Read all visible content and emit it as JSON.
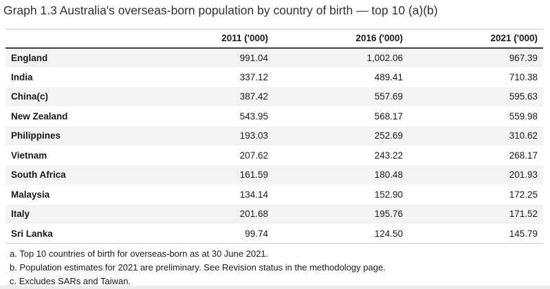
{
  "title": "Graph 1.3 Australia's overseas-born population by country of birth — top 10 (a)(b)",
  "table": {
    "headers": [
      "2011 ('000)",
      "2016 ('000)",
      "2021 ('000)"
    ],
    "rows": [
      {
        "name": "England",
        "values": [
          "991.04",
          "1,002.06",
          "967.39"
        ]
      },
      {
        "name": "India",
        "values": [
          "337.12",
          "489.41",
          "710.38"
        ]
      },
      {
        "name": "China(c)",
        "values": [
          "387.42",
          "557.69",
          "595.63"
        ]
      },
      {
        "name": "New Zealand",
        "values": [
          "543.95",
          "568.17",
          "559.98"
        ]
      },
      {
        "name": "Philippines",
        "values": [
          "193.03",
          "252.69",
          "310.62"
        ]
      },
      {
        "name": "Vietnam",
        "values": [
          "207.62",
          "243.22",
          "268.17"
        ]
      },
      {
        "name": "South Africa",
        "values": [
          "161.59",
          "180.48",
          "201.93"
        ]
      },
      {
        "name": "Malaysia",
        "values": [
          "134.14",
          "152.90",
          "172.25"
        ]
      },
      {
        "name": "Italy",
        "values": [
          "201.68",
          "195.76",
          "171.52"
        ]
      },
      {
        "name": "Sri Lanka",
        "values": [
          "99.74",
          "124.50",
          "145.79"
        ]
      }
    ]
  },
  "footnotes": [
    "a. Top 10 countries of birth for overseas-born as at 30 June 2021.",
    "b. Population estimates for 2021 are preliminary. See Revision status in the methodology page.",
    "c. Excludes SARs and Taiwan."
  ],
  "colors": {
    "row_alt_background": "#f3f3f3",
    "header_rule_dark": "#3b3b3b",
    "rule_light": "#cccccc",
    "text": "#1a1a1a",
    "title_text": "#323232"
  },
  "chart_data": {
    "type": "table",
    "title": "Graph 1.3 Australia's overseas-born population by country of birth — top 10 (a)(b)",
    "categories": [
      "England",
      "India",
      "China(c)",
      "New Zealand",
      "Philippines",
      "Vietnam",
      "South Africa",
      "Malaysia",
      "Italy",
      "Sri Lanka"
    ],
    "series": [
      {
        "name": "2011 ('000)",
        "values": [
          991.04,
          337.12,
          387.42,
          543.95,
          193.03,
          207.62,
          161.59,
          134.14,
          201.68,
          99.74
        ]
      },
      {
        "name": "2016 ('000)",
        "values": [
          1002.06,
          489.41,
          557.69,
          568.17,
          252.69,
          243.22,
          180.48,
          152.9,
          195.76,
          124.5
        ]
      },
      {
        "name": "2021 ('000)",
        "values": [
          967.39,
          710.38,
          595.63,
          559.98,
          310.62,
          268.17,
          201.93,
          172.25,
          171.52,
          145.79
        ]
      }
    ],
    "footnotes": [
      "a. Top 10 countries of birth for overseas-born as at 30 June 2021.",
      "b. Population estimates for 2021 are preliminary. See Revision status in the methodology page.",
      "c. Excludes SARs and Taiwan."
    ]
  }
}
